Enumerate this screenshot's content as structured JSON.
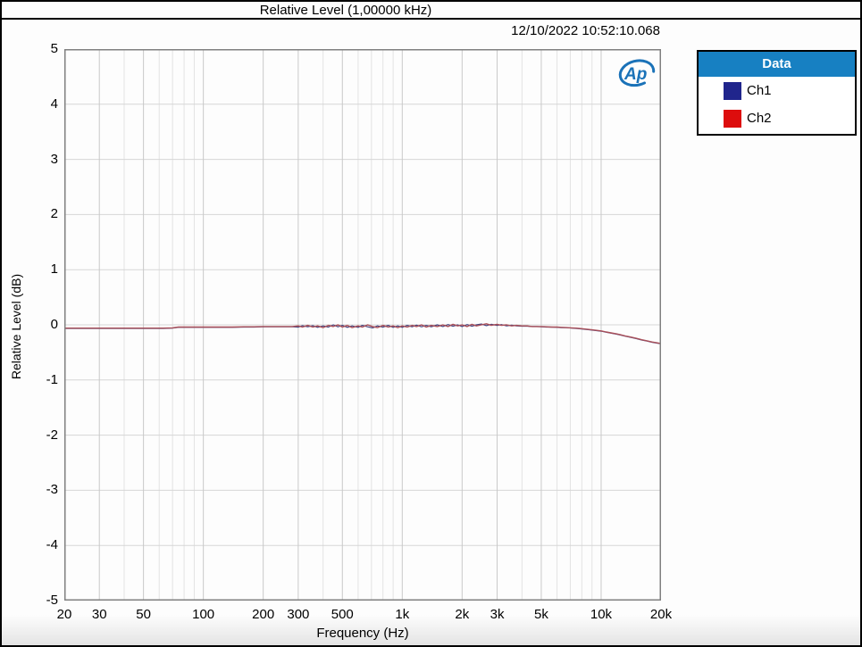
{
  "header": {
    "title": "Relative Level (1,00000 kHz)",
    "timestamp": "12/10/2022 10:52:10.068"
  },
  "logo": {
    "text": "Ap"
  },
  "legend": {
    "title": "Data",
    "items": [
      {
        "label": "Ch1",
        "color": "#20258c"
      },
      {
        "label": "Ch2",
        "color": "#dd0d0d"
      }
    ]
  },
  "colors": {
    "legend_header": "#1780c2",
    "plot_border": "#808080",
    "grid_major": "#c9c9c9",
    "grid_minor": "#e3e3e3",
    "grid_horizontal": "#d6d6d6",
    "ch1_trace": "#42427e",
    "ch2_trace": "#a84e58",
    "logo_blue": "#1a72b8",
    "frame": "#000000"
  },
  "chart_data": {
    "type": "line",
    "title": "Relative Level (1,00000 kHz)",
    "xlabel": "Frequency (Hz)",
    "ylabel": "Relative Level (dB)",
    "x_scale": "log",
    "xlim": [
      20,
      20000
    ],
    "ylim": [
      -5,
      5
    ],
    "grid": true,
    "legend_position": "right",
    "x_tick_values": [
      20,
      30,
      50,
      100,
      200,
      300,
      500,
      1000,
      2000,
      3000,
      5000,
      10000,
      20000
    ],
    "x_tick_labels": [
      "20",
      "30",
      "50",
      "100",
      "200",
      "300",
      "500",
      "1k",
      "2k",
      "3k",
      "5k",
      "10k",
      "20k"
    ],
    "y_tick_values": [
      5,
      4,
      3,
      2,
      1,
      0,
      -1,
      -2,
      -3,
      -4,
      -5
    ],
    "x": [
      20,
      25,
      32,
      40,
      50,
      63,
      70,
      75,
      80,
      90,
      100,
      112,
      125,
      140,
      160,
      180,
      200,
      224,
      250,
      280,
      300,
      315,
      335,
      355,
      375,
      400,
      425,
      450,
      475,
      500,
      530,
      560,
      600,
      630,
      670,
      710,
      750,
      800,
      850,
      900,
      950,
      1000,
      1060,
      1120,
      1180,
      1250,
      1320,
      1400,
      1500,
      1600,
      1700,
      1800,
      1900,
      2000,
      2120,
      2240,
      2360,
      2500,
      2650,
      2800,
      3000,
      3150,
      3350,
      3550,
      3750,
      4000,
      4250,
      4500,
      4750,
      5000,
      5300,
      5600,
      6000,
      6300,
      6700,
      7100,
      7500,
      8000,
      8500,
      9000,
      9500,
      10000,
      10600,
      11200,
      12000,
      12500,
      13200,
      14000,
      15000,
      16000,
      17000,
      18000,
      19000,
      20000
    ],
    "series": [
      {
        "name": "Ch1",
        "values": [
          -0.065,
          -0.065,
          -0.065,
          -0.065,
          -0.065,
          -0.065,
          -0.06,
          -0.045,
          -0.045,
          -0.045,
          -0.045,
          -0.045,
          -0.045,
          -0.045,
          -0.04,
          -0.04,
          -0.035,
          -0.035,
          -0.035,
          -0.035,
          -0.04,
          -0.015,
          -0.035,
          -0.015,
          -0.045,
          -0.02,
          -0.04,
          0.0,
          -0.035,
          -0.01,
          -0.045,
          -0.02,
          -0.045,
          -0.01,
          -0.035,
          -0.055,
          -0.02,
          -0.04,
          -0.01,
          -0.045,
          -0.02,
          -0.045,
          -0.01,
          -0.035,
          -0.005,
          -0.035,
          -0.01,
          -0.035,
          0.0,
          -0.03,
          0.005,
          -0.025,
          0.0,
          -0.03,
          0.005,
          -0.025,
          0.0,
          0.015,
          -0.015,
          0.01,
          -0.01,
          0.005,
          -0.02,
          -0.005,
          -0.02,
          -0.025,
          -0.025,
          -0.03,
          -0.03,
          -0.035,
          -0.04,
          -0.04,
          -0.045,
          -0.05,
          -0.05,
          -0.06,
          -0.065,
          -0.075,
          -0.085,
          -0.095,
          -0.105,
          -0.115,
          -0.135,
          -0.15,
          -0.17,
          -0.185,
          -0.205,
          -0.225,
          -0.25,
          -0.275,
          -0.295,
          -0.315,
          -0.33,
          -0.345
        ]
      },
      {
        "name": "Ch2",
        "values": [
          -0.06,
          -0.06,
          -0.06,
          -0.06,
          -0.06,
          -0.06,
          -0.055,
          -0.04,
          -0.04,
          -0.04,
          -0.04,
          -0.04,
          -0.04,
          -0.04,
          -0.035,
          -0.035,
          -0.03,
          -0.03,
          -0.03,
          -0.03,
          -0.02,
          -0.04,
          -0.01,
          -0.04,
          -0.02,
          -0.05,
          -0.01,
          -0.03,
          0.0,
          -0.04,
          -0.01,
          -0.05,
          -0.02,
          -0.04,
          0.0,
          -0.03,
          -0.05,
          -0.01,
          -0.04,
          -0.02,
          -0.05,
          -0.02,
          -0.04,
          -0.01,
          -0.03,
          0.0,
          -0.04,
          -0.01,
          -0.03,
          0.0,
          -0.03,
          0.01,
          -0.02,
          0.0,
          -0.03,
          0.01,
          -0.02,
          0.0,
          0.02,
          -0.01,
          0.01,
          -0.01,
          0.0,
          -0.02,
          -0.01,
          -0.02,
          -0.02,
          -0.03,
          -0.03,
          -0.03,
          -0.035,
          -0.04,
          -0.04,
          -0.045,
          -0.05,
          -0.055,
          -0.06,
          -0.07,
          -0.08,
          -0.09,
          -0.1,
          -0.11,
          -0.13,
          -0.145,
          -0.165,
          -0.18,
          -0.2,
          -0.22,
          -0.245,
          -0.27,
          -0.29,
          -0.31,
          -0.325,
          -0.34
        ]
      }
    ]
  }
}
